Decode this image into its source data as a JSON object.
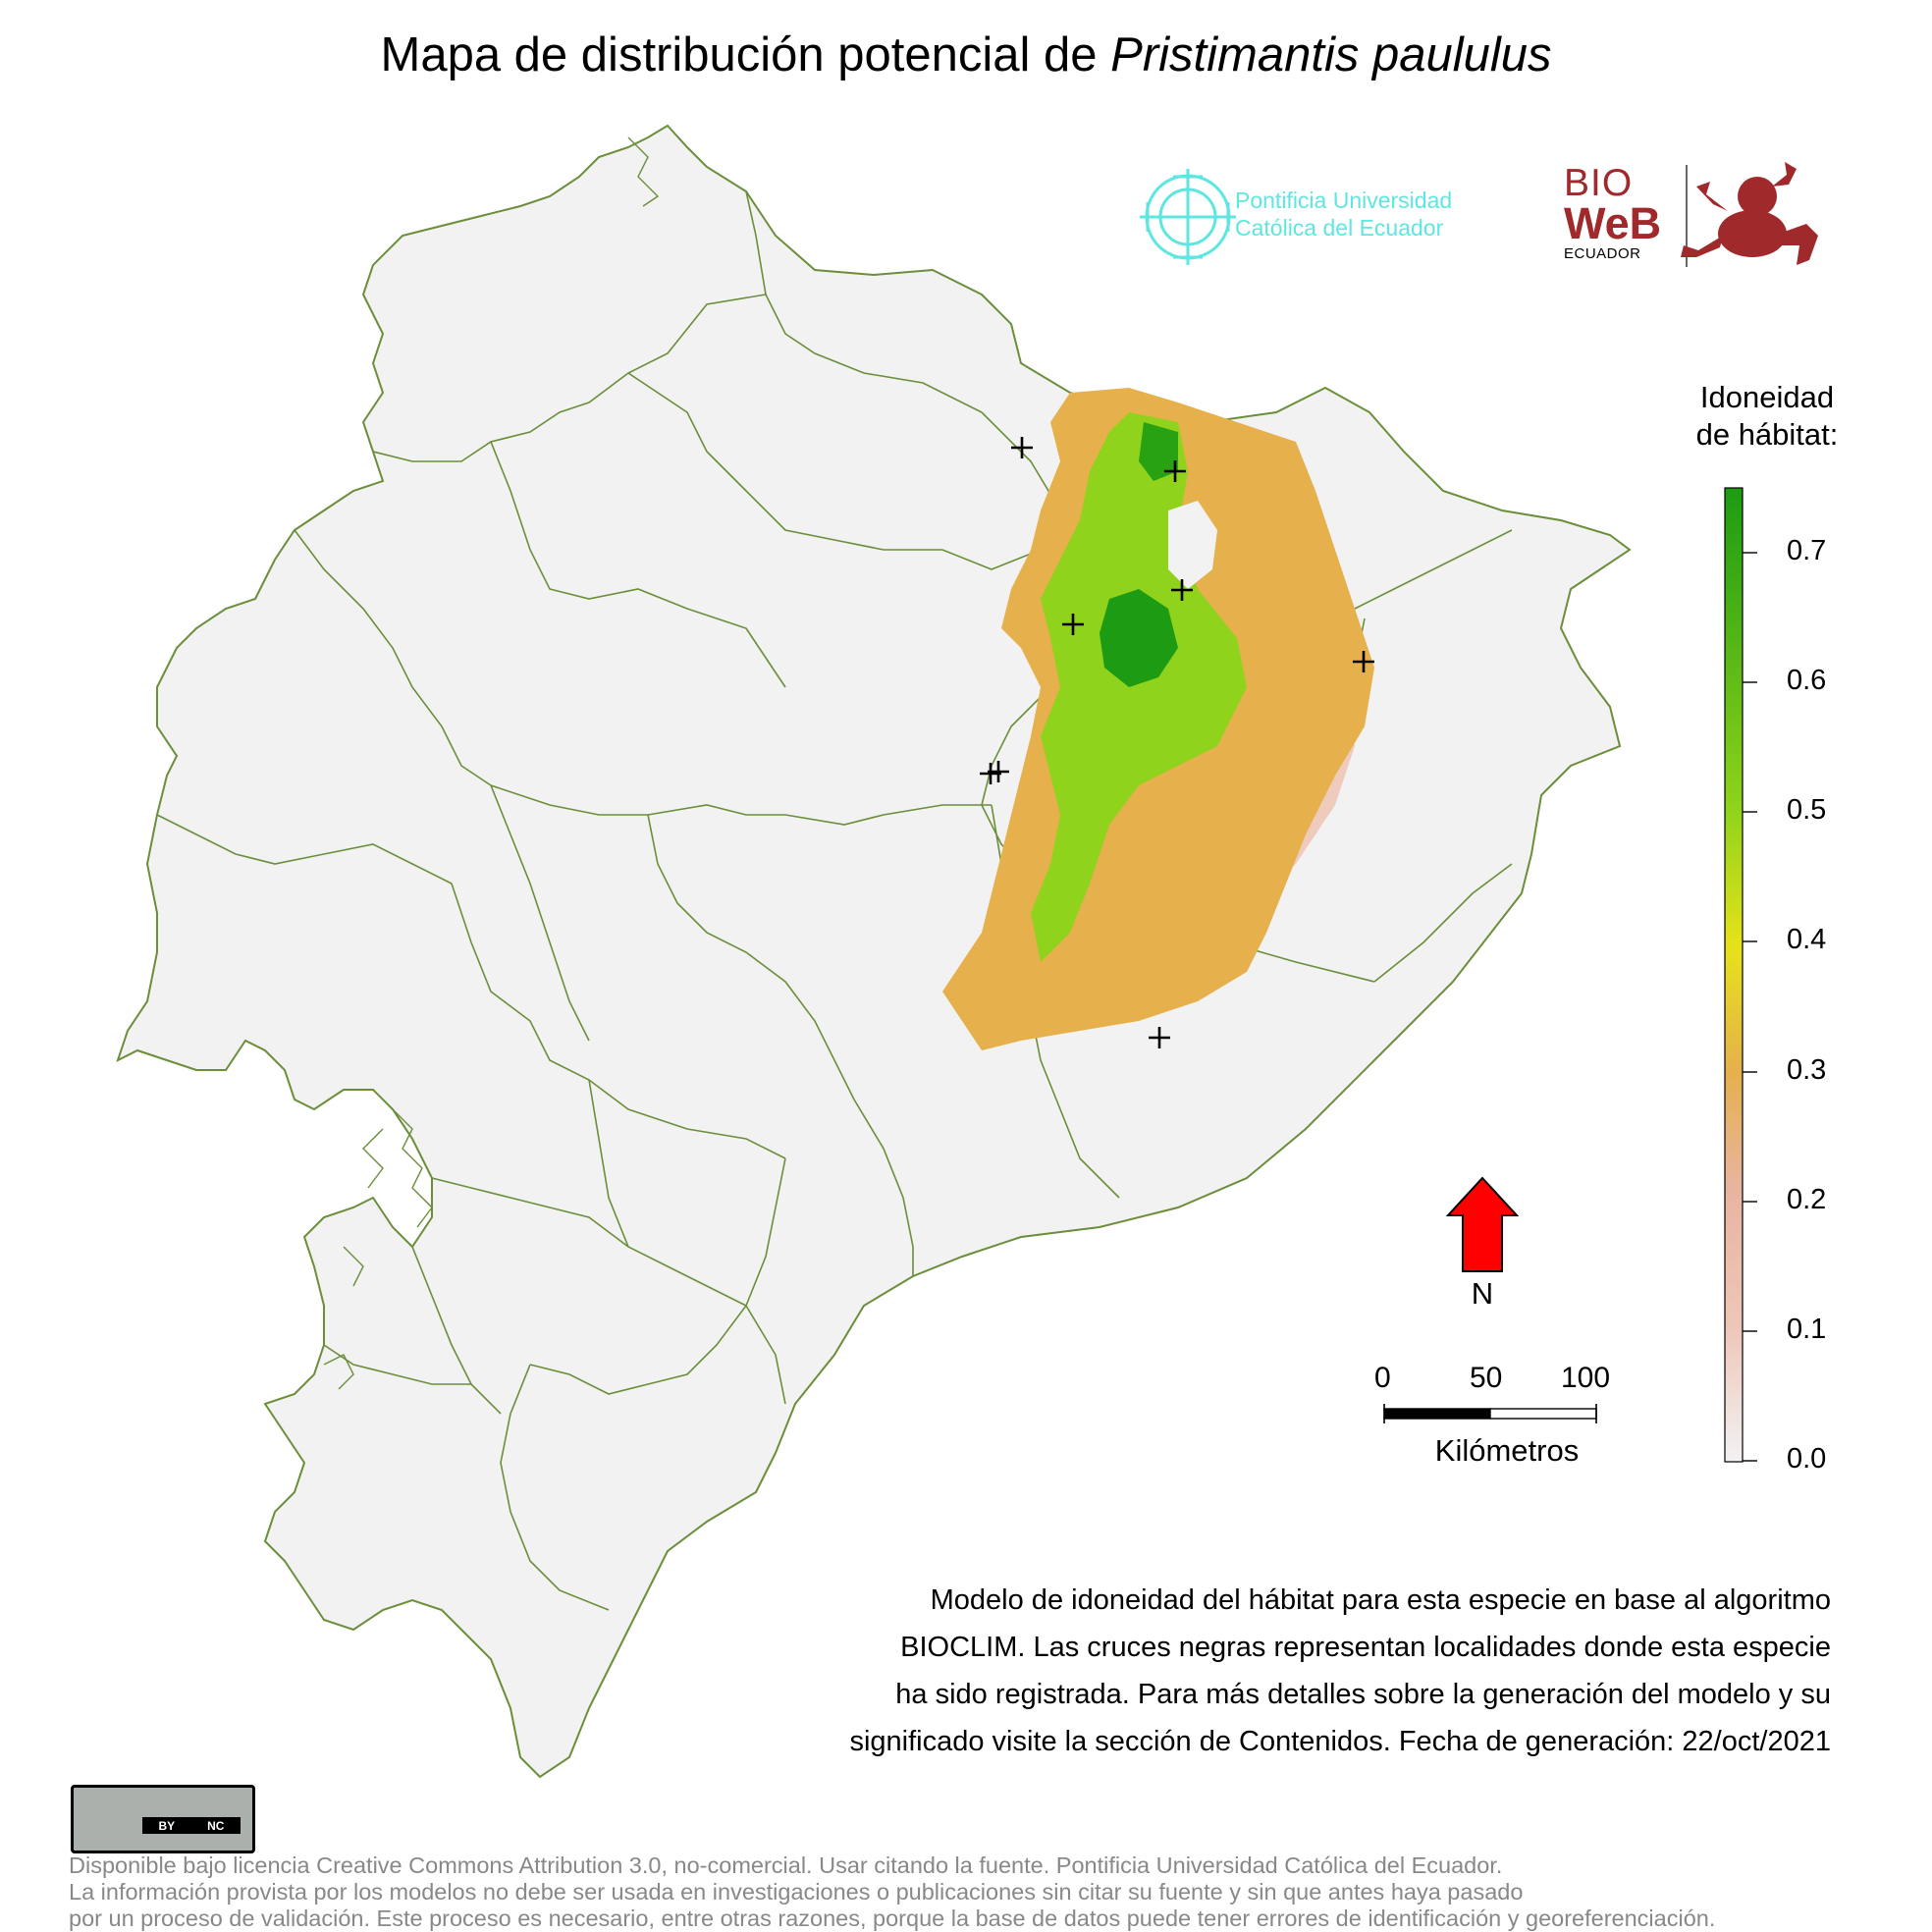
{
  "title": {
    "text": "Mapa de distribución potencial de ",
    "species": "Pristimantis paululus"
  },
  "logos": {
    "puce": {
      "line1": "Pontificia Universidad",
      "line2": "Católica del Ecuador",
      "color": "#5ee6e0"
    },
    "bioweb": {
      "line1": "BIO",
      "line2": "WeB",
      "line3": "ECUADOR",
      "color": "#a0292c"
    }
  },
  "legend": {
    "title_line1": "Idoneidad",
    "title_line2": "de hábitat:",
    "ticks": [
      "0.7",
      "0.6",
      "0.5",
      "0.4",
      "0.3",
      "0.2",
      "0.1",
      "0.0"
    ],
    "tick_values": [
      0.7,
      0.6,
      0.5,
      0.4,
      0.3,
      0.2,
      0.1,
      0.0
    ],
    "range": [
      0,
      0.75
    ],
    "colors": [
      "#f2f2f2",
      "#e8b4a0",
      "#e6b04d",
      "#e6e21a",
      "#7bcc19",
      "#1d9b12"
    ]
  },
  "north_arrow": {
    "label": "N",
    "color": "#ff0000"
  },
  "scale_bar": {
    "labels": [
      "0",
      "50",
      "100"
    ],
    "unit": "Kilómetros"
  },
  "description": {
    "lines": [
      "Modelo de idoneidad del hábitat para esta especie en base al algoritmo",
      "BIOCLIM. Las cruces negras representan localidades donde esta especie",
      "ha sido registrada. Para más detalles sobre la generación del modelo y su",
      "significado visite la sección de Contenidos. Fecha de generación: 22/oct/2021"
    ]
  },
  "cc_badge": {
    "by": "BY",
    "nc": "NC"
  },
  "license": {
    "lines": [
      "Disponible bajo licencia Creative Commons Attribution 3.0, no-comercial. Usar citando la fuente. Pontificia Universidad Católica del Ecuador.",
      "La información provista por los modelos no debe ser usada en investigaciones o publicaciones sin citar su fuente y sin que antes haya pasado",
      "por un proceso de validación. Este proceso es necesario, entre otras razones, porque la base de datos puede tener errores de identificación y georeferenciación."
    ]
  },
  "map": {
    "country_fill": "#f2f2f2",
    "border_color": "#6b8e3a",
    "suitability_colors": {
      "low": "#e6b04d",
      "medium": "#8fd31c",
      "high": "#1d9b12",
      "very_low": "#eec6b8"
    },
    "occurrence_count": 9
  }
}
